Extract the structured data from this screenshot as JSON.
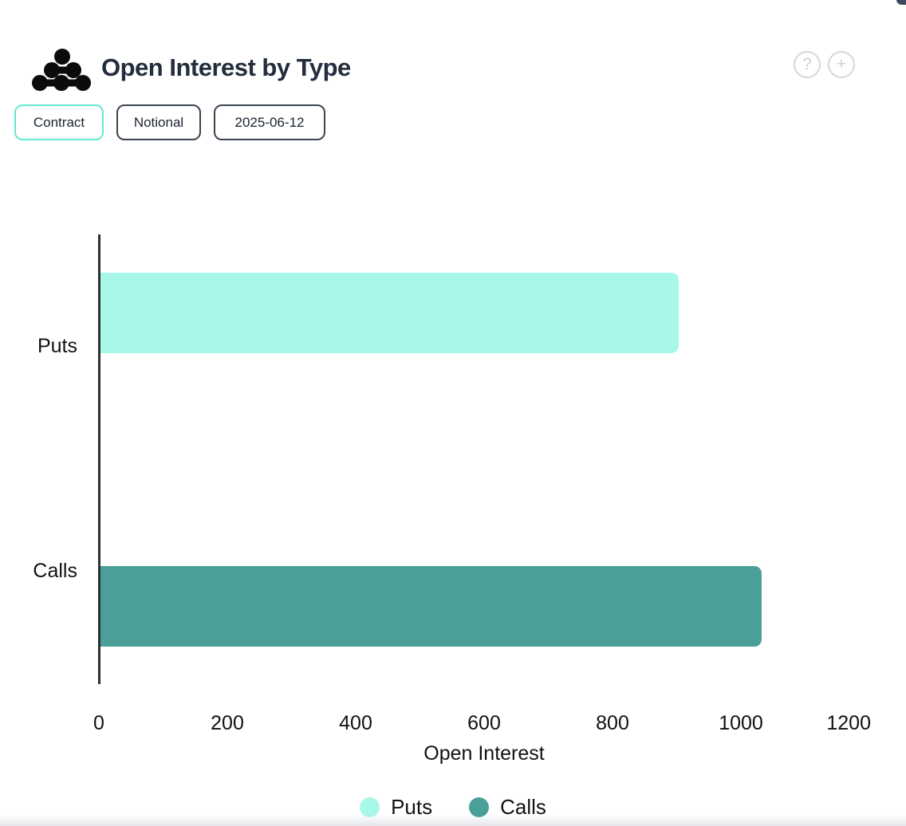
{
  "header": {
    "title": "Open Interest by Type",
    "help_glyph": "?",
    "add_glyph": "+"
  },
  "toolbar": {
    "mode_buttons": [
      {
        "label": "Contract",
        "selected": true
      },
      {
        "label": "Notional",
        "selected": false
      }
    ],
    "date_value": "2025-06-12"
  },
  "chart_data": {
    "type": "bar",
    "orientation": "horizontal",
    "title": "Open Interest by Type",
    "categories": [
      "Puts",
      "Calls"
    ],
    "values": [
      900,
      1030
    ],
    "bar_colors": [
      "#a8f8e9",
      "#4aa099"
    ],
    "xlabel": "Open Interest",
    "xlim": [
      0,
      1200
    ],
    "xticks": [
      0,
      200,
      400,
      600,
      800,
      1000,
      1200
    ],
    "grid": false,
    "legend": {
      "position": "bottom",
      "entries": [
        {
          "label": "Puts",
          "color": "#a8f8e9"
        },
        {
          "label": "Calls",
          "color": "#4aa099"
        }
      ]
    }
  },
  "colors": {
    "accent_mint": "#64e8d2",
    "button_border": "#3c4454",
    "title_text": "#232d3d",
    "axis_line": "#2d2f33",
    "icon_gray": "#d6d6d6"
  }
}
